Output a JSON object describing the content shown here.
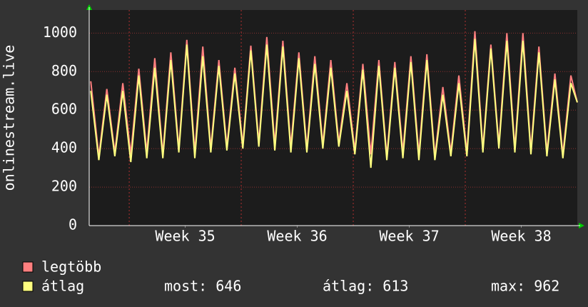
{
  "chart_data": {
    "type": "line",
    "y_label": "onlinestream.live",
    "xlim": [
      0,
      30.5
    ],
    "xticks": [
      {
        "value": 6,
        "label": "Week 35"
      },
      {
        "value": 13,
        "label": "Week 36"
      },
      {
        "value": 20,
        "label": "Week 37"
      },
      {
        "value": 27,
        "label": "Week 38"
      }
    ],
    "x_major_grid": [
      2.5,
      9.5,
      16.5,
      23.5
    ],
    "ylim": [
      0,
      1120
    ],
    "yticks": [
      0,
      200,
      400,
      600,
      800,
      1000
    ],
    "grid": true,
    "x": [
      0.1,
      0.6,
      1.1,
      1.6,
      2.1,
      2.6,
      3.1,
      3.6,
      4.1,
      4.6,
      5.1,
      5.6,
      6.1,
      6.6,
      7.1,
      7.6,
      8.1,
      8.6,
      9.1,
      9.6,
      10.1,
      10.6,
      11.1,
      11.6,
      12.1,
      12.6,
      13.1,
      13.6,
      14.1,
      14.6,
      15.1,
      15.6,
      16.1,
      16.6,
      17.1,
      17.6,
      18.1,
      18.6,
      19.1,
      19.6,
      20.1,
      20.6,
      21.1,
      21.6,
      22.1,
      22.6,
      23.1,
      23.6,
      24.1,
      24.6,
      25.1,
      25.6,
      26.1,
      26.6,
      27.1,
      27.6,
      28.1,
      28.6,
      29.1,
      29.6,
      30.1,
      30.5
    ],
    "series": [
      {
        "name": "legtöbb",
        "color": "#ff7f7f",
        "values": [
          750,
          360,
          710,
          380,
          740,
          370,
          815,
          380,
          870,
          370,
          900,
          400,
          965,
          380,
          930,
          400,
          860,
          410,
          820,
          420,
          935,
          430,
          980,
          420,
          960,
          410,
          900,
          400,
          880,
          420,
          860,
          430,
          740,
          390,
          840,
          370,
          860,
          360,
          850,
          380,
          880,
          370,
          890,
          360,
          720,
          380,
          780,
          380,
          1010,
          400,
          940,
          420,
          1000,
          400,
          1000,
          390,
          930,
          380,
          790,
          370,
          780,
          640
        ]
      },
      {
        "name": "átlag",
        "color": "#ffff80",
        "values": [
          700,
          340,
          680,
          360,
          700,
          330,
          780,
          350,
          820,
          350,
          860,
          380,
          940,
          350,
          880,
          380,
          830,
          390,
          790,
          400,
          910,
          410,
          940,
          390,
          930,
          380,
          870,
          380,
          840,
          400,
          820,
          410,
          700,
          370,
          810,
          300,
          830,
          340,
          820,
          350,
          850,
          340,
          860,
          340,
          680,
          360,
          740,
          360,
          970,
          380,
          920,
          400,
          960,
          380,
          960,
          370,
          900,
          360,
          760,
          350,
          740,
          640
        ]
      }
    ],
    "stats": [
      "most: 646",
      "átlag: 613",
      "max: 962"
    ]
  }
}
